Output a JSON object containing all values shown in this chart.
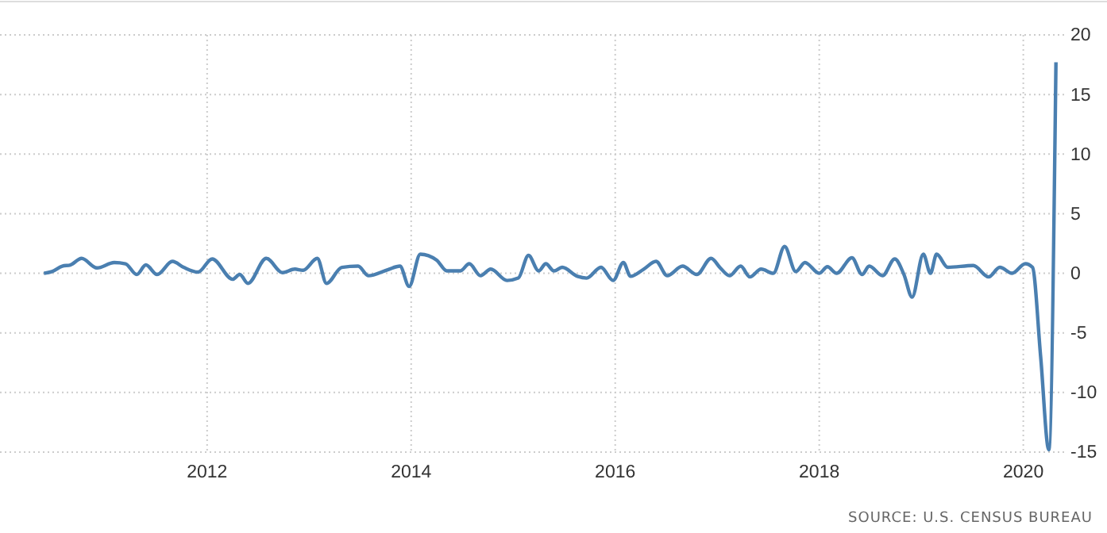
{
  "chart_data": {
    "type": "line",
    "x": [
      2010.4,
      2010.48,
      2010.58,
      2010.66,
      2010.77,
      2010.92,
      2011.09,
      2011.2,
      2011.31,
      2011.4,
      2011.51,
      2011.66,
      2011.77,
      2011.91,
      2012.05,
      2012.25,
      2012.32,
      2012.4,
      2012.58,
      2012.74,
      2012.86,
      2012.94,
      2013.08,
      2013.17,
      2013.32,
      2013.48,
      2013.58,
      2013.77,
      2013.89,
      2013.98,
      2014.09,
      2014.25,
      2014.35,
      2014.48,
      2014.57,
      2014.68,
      2014.78,
      2014.94,
      2015.05,
      2015.15,
      2015.25,
      2015.32,
      2015.4,
      2015.48,
      2015.63,
      2015.72,
      2015.86,
      2015.98,
      2016.08,
      2016.15,
      2016.28,
      2016.4,
      2016.51,
      2016.66,
      2016.8,
      2016.94,
      2017.03,
      2017.12,
      2017.23,
      2017.32,
      2017.43,
      2017.55,
      2017.66,
      2017.77,
      2017.86,
      2018.0,
      2018.08,
      2018.17,
      2018.32,
      2018.42,
      2018.49,
      2018.62,
      2018.74,
      2018.83,
      2018.91,
      2019.02,
      2019.09,
      2019.15,
      2019.26,
      2019.51,
      2019.66,
      2019.77,
      2019.89,
      2020.02,
      2020.09,
      2020.17,
      2020.25,
      2020.32
    ],
    "series": [
      {
        "color": "#4a7fb0",
        "values": [
          0,
          0.15,
          0.6,
          0.7,
          1.25,
          0.45,
          0.9,
          0.8,
          -0.1,
          0.7,
          -0.1,
          1.0,
          0.5,
          0.1,
          1.2,
          -0.5,
          -0.1,
          -0.85,
          1.25,
          0.05,
          0.35,
          0.25,
          1.25,
          -0.85,
          0.5,
          0.6,
          -0.2,
          0.3,
          0.6,
          -1.1,
          1.6,
          1.1,
          0.2,
          0.2,
          0.8,
          -0.2,
          0.35,
          -0.6,
          -0.4,
          1.5,
          0.2,
          0.8,
          0.2,
          0.5,
          -0.25,
          -0.4,
          0.5,
          -0.6,
          0.9,
          -0.25,
          0.35,
          1.0,
          -0.2,
          0.6,
          -0.1,
          1.25,
          0.45,
          -0.2,
          0.6,
          -0.3,
          0.35,
          0,
          2.25,
          0.15,
          0.9,
          0,
          0.55,
          0,
          1.3,
          -0.1,
          0.6,
          -0.2,
          1.2,
          -0.1,
          -2.0,
          1.6,
          0,
          1.6,
          0.5,
          0.65,
          -0.3,
          0.5,
          0,
          0.8,
          0.5,
          -7,
          -14.8,
          17.7
        ]
      }
    ],
    "xlim": [
      2009.97,
      2020.4
    ],
    "xticks": [
      2012,
      2014,
      2016,
      2018,
      2020
    ],
    "ylim": [
      -15,
      20
    ],
    "yticks": [
      20,
      15,
      10,
      5,
      0,
      -5,
      -10,
      -15
    ],
    "grid": true,
    "marker": "none",
    "line_style": "solid",
    "annotations": [
      "SOURCE: U.S. CENSUS BUREAU"
    ]
  }
}
